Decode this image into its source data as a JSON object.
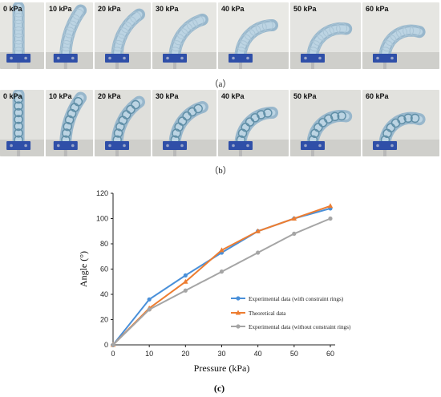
{
  "figure": {
    "row_a": {
      "caption": "（a）",
      "labels": [
        "0 kPa",
        "10 kPa",
        "20 kPa",
        "30 kPa",
        "40 kPa",
        "50 kPa",
        "60 kPa"
      ],
      "bend_angles": [
        0,
        36,
        55,
        73,
        90,
        100,
        108
      ]
    },
    "row_b": {
      "caption": "（b）",
      "labels": [
        "0 kPa",
        "10 kPa",
        "20 kPa",
        "30 kPa",
        "40 kPa",
        "50 kPa",
        "60 kPa"
      ],
      "bend_angles": [
        0,
        36,
        55,
        73,
        90,
        100,
        108
      ]
    },
    "row_c": {
      "caption": "(c)"
    }
  },
  "chart_data": {
    "type": "line",
    "xlabel": "Pressure (kPa)",
    "ylabel": "Angle (°)",
    "xlim": [
      0,
      60
    ],
    "ylim": [
      0,
      120
    ],
    "xticks": [
      0,
      10,
      20,
      30,
      40,
      50,
      60
    ],
    "yticks": [
      0,
      20,
      40,
      60,
      80,
      100,
      120
    ],
    "grid": false,
    "legend_position": "center-right",
    "series": [
      {
        "name": "Experimental data (with constraint rings)",
        "color": "#4a90d9",
        "marker": "circle",
        "x": [
          0,
          10,
          20,
          30,
          40,
          50,
          60
        ],
        "y": [
          0,
          36,
          55,
          73,
          90,
          100,
          108
        ]
      },
      {
        "name": "Theoretical data",
        "color": "#ed7d31",
        "marker": "triangle",
        "x": [
          0,
          10,
          20,
          30,
          40,
          50,
          60
        ],
        "y": [
          0,
          29,
          50,
          75,
          90,
          100,
          110
        ]
      },
      {
        "name": "Experimental data (without constraint rings)",
        "color": "#a5a5a5",
        "marker": "circle",
        "x": [
          0,
          10,
          20,
          30,
          40,
          50,
          60
        ],
        "y": [
          0,
          28,
          43,
          58,
          73,
          88,
          100
        ]
      }
    ]
  }
}
